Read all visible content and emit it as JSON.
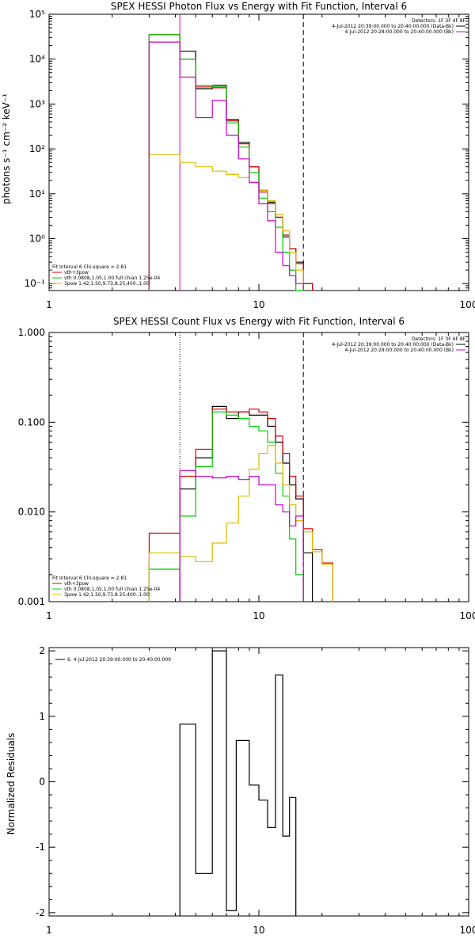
{
  "chart_data": [
    {
      "type": "step",
      "title": "SPEX HESSI Photon Flux vs Energy with Fit Function, Interval 6",
      "ylabel": "photons s⁻¹ cm⁻² keV⁻¹",
      "xlabel": "",
      "x_scale": "log",
      "y_scale": "log",
      "xlim": [
        1,
        100
      ],
      "ylim": [
        0.07,
        100000
      ],
      "x_tick_labels": [
        "1",
        "10",
        "100"
      ],
      "y_tick_labels": [
        "10⁻¹",
        "10⁰",
        "10¹",
        "10²",
        "10³",
        "10⁴",
        "10⁵"
      ],
      "vlines": [
        {
          "x": 4.2,
          "style": "solid",
          "color": "#cc00cc"
        },
        {
          "x": 16.3,
          "style": "dashed",
          "color": "#000000"
        }
      ],
      "legend_top_right": [
        {
          "label": "Detectors: 1F 3F 4F 8F",
          "color": ""
        },
        {
          "label": "4-Jul-2012 20:39:00.000 to 20:40:00.000 (Data-Bk)",
          "color": "#000000"
        },
        {
          "label": "4-Jul-2012 20:28:00.000 to 20:40:00.000 (Bk)",
          "color": "#cc00cc"
        }
      ],
      "legend_bottom_left": [
        {
          "label": "Fit Interval 6   Chi-square = 2.81",
          "color": ""
        },
        {
          "label": "vth+3pow",
          "color": "#dd0000"
        },
        {
          "label": "vth 0.0808,1.05,1.00  full chian 1.25e-04",
          "color": "#00cc00"
        },
        {
          "label": "3pow 1.42,1.50,9.73,8.25,400.,1.00",
          "color": "#ddbb00"
        }
      ],
      "bin_edges": [
        3.0,
        4.2,
        5.0,
        6.0,
        7.0,
        8.0,
        9.0,
        10.0,
        11.0,
        12.0,
        13.0,
        14.0,
        15.0,
        16.3,
        18.0
      ],
      "series": [
        {
          "name": "data-bk",
          "color": "#000000",
          "values": [
            35000,
            15000,
            2200,
            2600,
            450,
            140,
            40,
            12,
            6.5,
            3,
            1.1,
            0.6,
            0.3,
            0.1
          ]
        },
        {
          "name": "vth+3pow",
          "color": "#dd0000",
          "values": [
            35000,
            10000,
            2400,
            2300,
            420,
            130,
            40,
            11,
            6,
            3,
            1.2,
            0.6,
            0.28,
            0.1
          ]
        },
        {
          "name": "vth",
          "color": "#00cc00",
          "values": [
            35000,
            10000,
            2600,
            2400,
            380,
            110,
            30,
            8,
            4,
            1.8,
            0.5,
            0.2,
            0.07
          ]
        },
        {
          "name": "3pow",
          "color": "#ddbb00",
          "values": [
            75,
            50,
            40,
            32,
            27,
            23,
            18,
            12,
            7,
            3.5,
            1.5,
            0.5,
            0.2
          ]
        },
        {
          "name": "bk",
          "color": "#cc00cc",
          "values": [
            24000,
            4000,
            500,
            1200,
            200,
            60,
            18,
            6,
            2.5,
            0.5,
            0.25,
            0.15,
            0.1
          ]
        }
      ]
    },
    {
      "type": "step",
      "title": "SPEX HESSI Count Flux vs Energy with Fit Function, Interval 6",
      "ylabel": "",
      "xlabel": "",
      "x_scale": "log",
      "y_scale": "log",
      "xlim": [
        1,
        100
      ],
      "ylim": [
        0.001,
        1.0
      ],
      "x_tick_labels": [
        "1",
        "10",
        "100"
      ],
      "y_tick_labels": [
        "0.001",
        "0.010",
        "0.100",
        "1.000"
      ],
      "vlines": [
        {
          "x": 4.2,
          "style": "dotted",
          "color": "#000000"
        },
        {
          "x": 16.3,
          "style": "dashed",
          "color": "#000000"
        }
      ],
      "legend_top_right": [
        {
          "label": "Detectors: 1F 3F 4F 8F",
          "color": ""
        },
        {
          "label": "4-Jul-2012 20:39:00.000 to 20:40:00.000 (Data-Bk)",
          "color": "#000000"
        },
        {
          "label": "4-Jul-2012 20:28:00.000 to 20:40:00.000 (Bk)",
          "color": "#cc00cc"
        }
      ],
      "legend_bottom_left": [
        {
          "label": "Fit Interval 6   Chi-square = 2.81",
          "color": ""
        },
        {
          "label": "vth+3pow",
          "color": "#dd0000"
        },
        {
          "label": "vth 0.0808,1.05,1.00  full chian 1.25e-04",
          "color": "#00cc00"
        },
        {
          "label": "3pow 1.42,1.50,9.73,8.25,400.,1.00",
          "color": "#ddbb00"
        }
      ],
      "bin_edges": [
        3.0,
        4.2,
        5.0,
        6.0,
        7.0,
        8.0,
        9.0,
        10.0,
        11.0,
        12.0,
        13.0,
        14.0,
        15.0,
        16.3,
        18.0,
        20.0,
        22.5
      ],
      "series": [
        {
          "name": "data-bk",
          "color": "#000000",
          "values": [
            null,
            0.018,
            0.04,
            0.15,
            0.11,
            0.13,
            0.12,
            0.12,
            0.09,
            0.06,
            0.035,
            0.02,
            0.014,
            0.0035,
            null,
            null
          ]
        },
        {
          "name": "vth+3pow",
          "color": "#dd0000",
          "values": [
            0.0058,
            0.025,
            0.05,
            0.14,
            0.13,
            0.13,
            0.14,
            0.13,
            0.11,
            0.07,
            0.045,
            0.025,
            0.015,
            0.0065,
            0.0038,
            0.0027
          ]
        },
        {
          "name": "vth",
          "color": "#00cc00",
          "values": [
            0.0023,
            0.009,
            0.032,
            0.13,
            0.12,
            0.11,
            0.09,
            0.08,
            0.06,
            0.027,
            0.015,
            0.005,
            0.002,
            null,
            null,
            null
          ]
        },
        {
          "name": "3pow",
          "color": "#ddbb00",
          "values": [
            0.0035,
            0.0032,
            0.0028,
            0.0045,
            0.0075,
            0.015,
            0.03,
            0.045,
            0.055,
            0.035,
            0.02,
            0.012,
            0.008,
            0.006,
            0.0036,
            0.0026
          ]
        },
        {
          "name": "bk",
          "color": "#cc00cc",
          "values": [
            null,
            0.029,
            0.025,
            0.024,
            0.025,
            0.023,
            0.025,
            0.02,
            0.02,
            0.012,
            0.01,
            0.007,
            0.009,
            null,
            null,
            null
          ]
        }
      ]
    },
    {
      "type": "step",
      "title": "",
      "ylabel": "Normalized Residuals",
      "xlabel": "",
      "x_scale": "log",
      "y_scale": "linear",
      "xlim": [
        1,
        100
      ],
      "ylim": [
        -2.05,
        2.05
      ],
      "x_tick_labels": [
        "1",
        "10",
        "100"
      ],
      "y_tick_labels": [
        "-2",
        "-1",
        "0",
        "1",
        "2"
      ],
      "legend_top_left": [
        {
          "label": "6.  4-Jul-2012 20:39:00.000 to 20:40:00.000",
          "color": "#000000"
        }
      ],
      "bin_edges": [
        4.2,
        5.0,
        6.0,
        7.0,
        7.8,
        9.0,
        10.0,
        11.0,
        12.0,
        13.0,
        14.0,
        15.0,
        16.3
      ],
      "series": [
        {
          "name": "residuals",
          "color": "#000000",
          "values": [
            0.88,
            -1.4,
            2.0,
            -1.97,
            0.63,
            -0.05,
            -0.28,
            -0.7,
            1.63,
            -0.83,
            -0.24
          ]
        }
      ]
    }
  ]
}
